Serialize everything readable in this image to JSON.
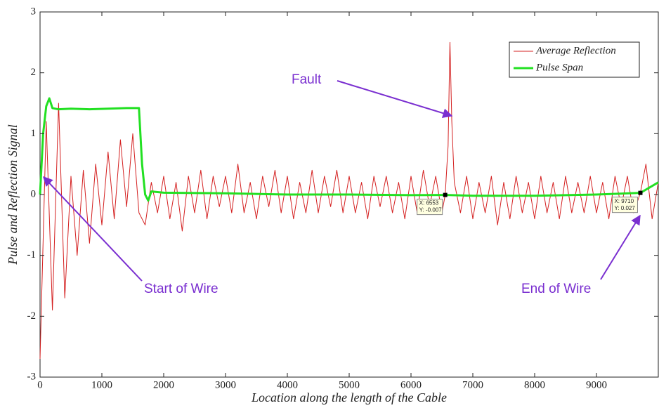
{
  "chart_data": {
    "type": "line",
    "xlabel": "Location along the length of the Cable",
    "ylabel": "Pulse and Reflection Signal",
    "xlim": [
      0,
      10000
    ],
    "ylim": [
      -3,
      3
    ],
    "xticks": [
      0,
      1000,
      2000,
      3000,
      4000,
      5000,
      6000,
      7000,
      8000,
      9000
    ],
    "yticks": [
      -3,
      -2,
      -1,
      0,
      1,
      2,
      3
    ],
    "grid": false,
    "legend": "upper right",
    "series": [
      {
        "name": "Average Reflection",
        "color": "#d42020",
        "x": [
          0,
          100,
          200,
          300,
          400,
          500,
          600,
          700,
          800,
          900,
          1000,
          1100,
          1200,
          1300,
          1400,
          1500,
          1600,
          1700,
          1800,
          1900,
          2000,
          2100,
          2200,
          2300,
          2400,
          2500,
          2600,
          2700,
          2800,
          2900,
          3000,
          3100,
          3200,
          3300,
          3400,
          3500,
          3600,
          3700,
          3800,
          3900,
          4000,
          4100,
          4200,
          4300,
          4400,
          4500,
          4600,
          4700,
          4800,
          4900,
          5000,
          5100,
          5200,
          5300,
          5400,
          5500,
          5600,
          5700,
          5800,
          5900,
          6000,
          6100,
          6200,
          6300,
          6400,
          6500,
          6553,
          6600,
          6630,
          6660,
          6700,
          6800,
          6900,
          7000,
          7100,
          7200,
          7300,
          7400,
          7500,
          7600,
          7700,
          7800,
          7900,
          8000,
          8100,
          8200,
          8300,
          8400,
          8500,
          8600,
          8700,
          8800,
          8900,
          9000,
          9100,
          9200,
          9300,
          9400,
          9500,
          9600,
          9710,
          9800,
          9900,
          10000
        ],
        "values": [
          -2.7,
          1.2,
          -1.9,
          1.5,
          -1.7,
          0.3,
          -1.0,
          0.4,
          -0.8,
          0.5,
          -0.5,
          0.7,
          -0.4,
          0.9,
          -0.2,
          1.0,
          -0.3,
          -0.5,
          0.2,
          -0.3,
          0.3,
          -0.4,
          0.2,
          -0.6,
          0.3,
          -0.3,
          0.4,
          -0.4,
          0.3,
          -0.2,
          0.3,
          -0.3,
          0.5,
          -0.3,
          0.2,
          -0.4,
          0.3,
          -0.2,
          0.4,
          -0.3,
          0.3,
          -0.4,
          0.2,
          -0.3,
          0.4,
          -0.3,
          0.3,
          -0.2,
          0.4,
          -0.3,
          0.3,
          -0.3,
          0.2,
          -0.4,
          0.3,
          -0.2,
          0.3,
          -0.3,
          0.2,
          -0.4,
          0.3,
          -0.3,
          0.4,
          -0.2,
          0.3,
          -0.3,
          -0.007,
          0.8,
          2.5,
          1.2,
          0.2,
          -0.3,
          0.3,
          -0.4,
          0.2,
          -0.3,
          0.3,
          -0.5,
          0.2,
          -0.4,
          0.3,
          -0.3,
          0.2,
          -0.4,
          0.3,
          -0.3,
          0.2,
          -0.4,
          0.3,
          -0.3,
          0.2,
          -0.3,
          0.3,
          -0.3,
          0.2,
          -0.4,
          0.3,
          -0.2,
          0.3,
          -0.3,
          0.027,
          0.5,
          -0.4,
          0.2
        ]
      },
      {
        "name": "Pulse Span",
        "color": "#22e022",
        "x": [
          0,
          50,
          100,
          150,
          200,
          300,
          500,
          800,
          1100,
          1400,
          1600,
          1650,
          1700,
          1750,
          1800,
          2000,
          3000,
          4000,
          5000,
          6000,
          6553,
          7000,
          8000,
          9000,
          9710,
          10000
        ],
        "values": [
          0,
          1.0,
          1.45,
          1.58,
          1.42,
          1.4,
          1.41,
          1.4,
          1.41,
          1.42,
          1.42,
          0.5,
          0.0,
          -0.1,
          0.05,
          0.03,
          0.02,
          0.0,
          0.0,
          -0.01,
          -0.007,
          -0.02,
          -0.02,
          0.0,
          0.027,
          0.2
        ]
      }
    ],
    "annotations": [
      "Fault",
      "Start of Wire",
      "End of Wire"
    ],
    "datatips": [
      {
        "x": 6553,
        "y": -0.007,
        "labels": [
          "X: 6553",
          "Y: -0.007"
        ]
      },
      {
        "x": 9710,
        "y": 0.027,
        "labels": [
          "X: 9710",
          "Y: 0.027"
        ]
      }
    ]
  }
}
